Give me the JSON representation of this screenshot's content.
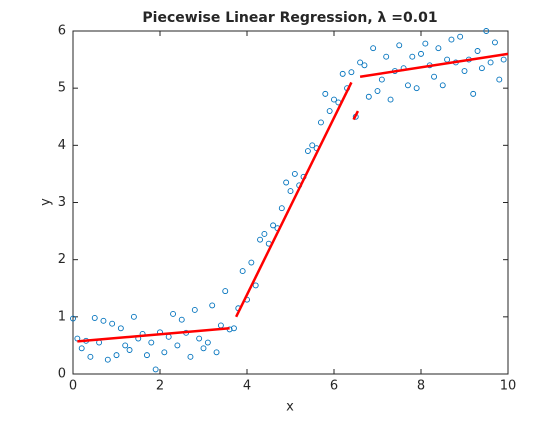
{
  "chart_data": {
    "type": "scatter",
    "title": "Piecewise Linear Regression, λ =0.01",
    "xlabel": "x",
    "ylabel": "y",
    "xlim": [
      0,
      10
    ],
    "ylim": [
      0,
      6
    ],
    "xticks": [
      0,
      2,
      4,
      6,
      8,
      10
    ],
    "yticks": [
      0,
      1,
      2,
      3,
      4,
      5,
      6
    ],
    "points": {
      "color": "#0072bd",
      "x": [
        0,
        0.1,
        0.2,
        0.3,
        0.4,
        0.5,
        0.6,
        0.7,
        0.8,
        0.9,
        1,
        1.1,
        1.2,
        1.3,
        1.4,
        1.5,
        1.6,
        1.7,
        1.8,
        1.9,
        2,
        2.1,
        2.2,
        2.3,
        2.4,
        2.5,
        2.6,
        2.7,
        2.8,
        2.9,
        3,
        3.1,
        3.2,
        3.3,
        3.4,
        3.5,
        3.6,
        3.7,
        3.8,
        3.9,
        4,
        4.1,
        4.2,
        4.3,
        4.4,
        4.5,
        4.6,
        4.7,
        4.8,
        4.9,
        5,
        5.1,
        5.2,
        5.3,
        5.4,
        5.5,
        5.6,
        5.7,
        5.8,
        5.9,
        6,
        6.1,
        6.2,
        6.3,
        6.4,
        6.5,
        6.6,
        6.7,
        6.8,
        6.9,
        7,
        7.1,
        7.2,
        7.3,
        7.4,
        7.5,
        7.6,
        7.7,
        7.8,
        7.9,
        8,
        8.1,
        8.2,
        8.3,
        8.4,
        8.5,
        8.6,
        8.7,
        8.8,
        8.9,
        9,
        9.1,
        9.2,
        9.3,
        9.4,
        9.5,
        9.6,
        9.7,
        9.8,
        9.9
      ],
      "y": [
        0.97,
        0.62,
        0.45,
        0.58,
        0.3,
        0.98,
        0.55,
        0.93,
        0.25,
        0.88,
        0.33,
        0.8,
        0.5,
        0.42,
        1.0,
        0.62,
        0.7,
        0.33,
        0.55,
        0.08,
        0.73,
        0.38,
        0.65,
        1.05,
        0.5,
        0.95,
        0.72,
        0.3,
        1.12,
        0.62,
        0.45,
        0.55,
        1.2,
        0.38,
        0.85,
        1.45,
        0.78,
        0.8,
        1.15,
        1.8,
        1.3,
        1.95,
        1.55,
        2.35,
        2.45,
        2.28,
        2.6,
        2.55,
        2.9,
        3.35,
        3.2,
        3.5,
        3.3,
        3.45,
        3.9,
        4.0,
        3.95,
        4.4,
        4.9,
        4.6,
        4.8,
        4.75,
        5.25,
        5.0,
        5.28,
        4.5,
        5.45,
        5.4,
        4.85,
        5.7,
        4.95,
        5.15,
        5.55,
        4.8,
        5.3,
        5.75,
        5.35,
        5.05,
        5.55,
        5.0,
        5.6,
        5.78,
        5.4,
        5.2,
        5.7,
        5.05,
        5.5,
        5.85,
        5.45,
        5.9,
        5.3,
        5.5,
        4.9,
        5.65,
        5.35,
        6.0,
        5.45,
        5.8,
        5.15,
        5.5
      ]
    },
    "fit_color": "#ff0000",
    "fit_segments": [
      {
        "x": [
          0.1,
          3.6
        ],
        "y": [
          0.57,
          0.8
        ]
      },
      {
        "x": [
          3.75,
          6.4
        ],
        "y": [
          1.0,
          5.1
        ]
      },
      {
        "x": [
          6.45,
          6.55
        ],
        "y": [
          4.45,
          4.6
        ]
      },
      {
        "x": [
          6.6,
          10
        ],
        "y": [
          5.2,
          5.6
        ]
      }
    ]
  }
}
